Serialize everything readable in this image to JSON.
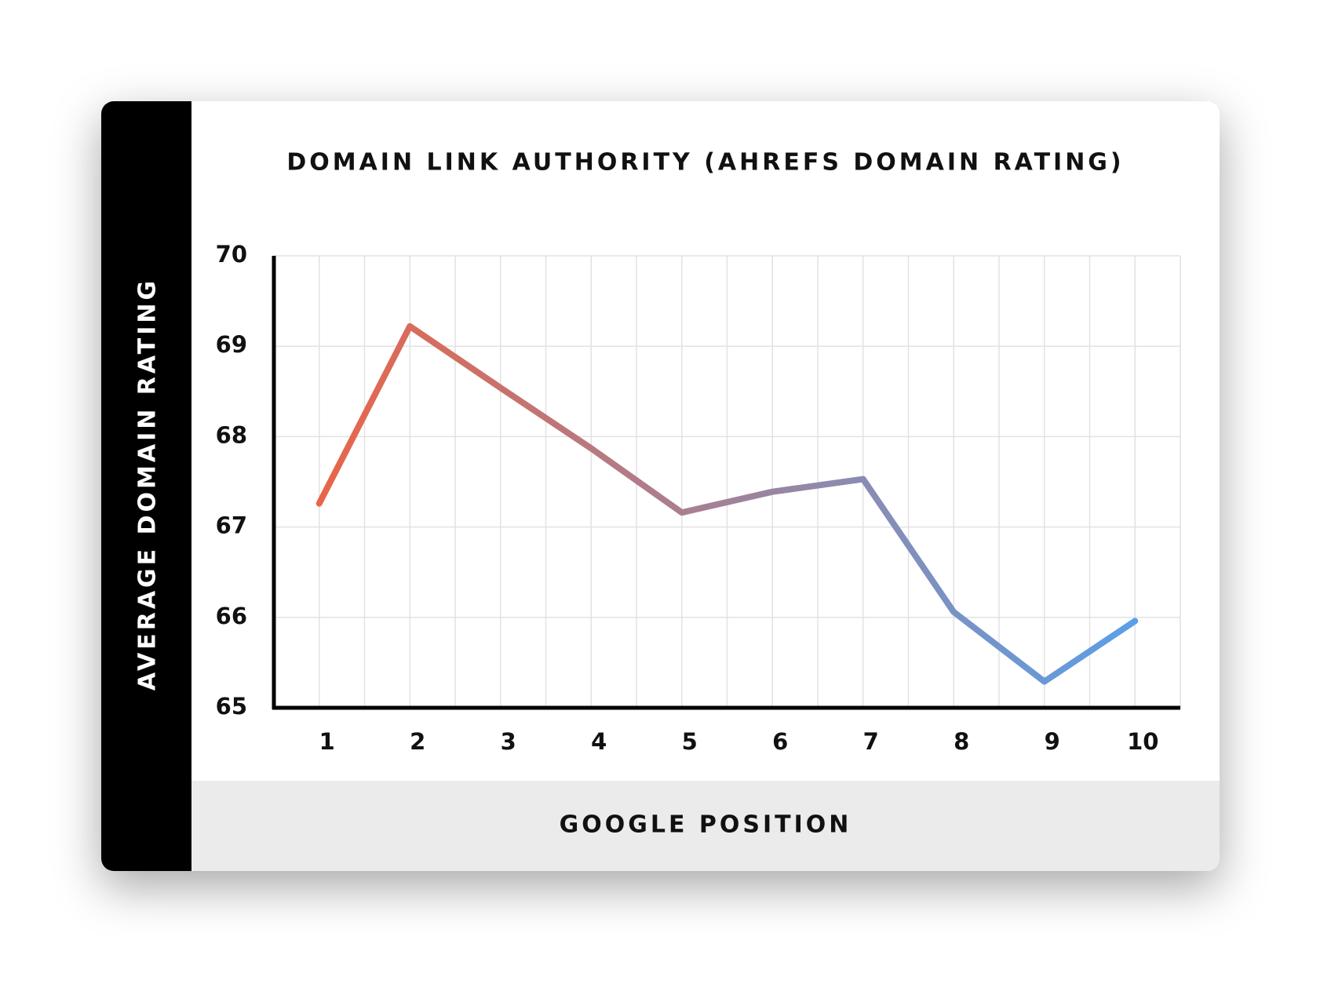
{
  "chart_data": {
    "type": "line",
    "title": "DOMAIN LINK AUTHORITY (AHREFS DOMAIN RATING)",
    "x_label": "GOOGLE POSITION",
    "y_label": "AVERAGE DOMAIN RATING",
    "x": [
      1,
      2,
      3,
      4,
      5,
      6,
      7,
      8,
      9,
      10
    ],
    "values": [
      67.26,
      69.22,
      68.54,
      67.87,
      67.16,
      67.39,
      67.53,
      66.06,
      65.29,
      65.96
    ],
    "gradient": [
      "#e8654a",
      "#5a9fe8"
    ],
    "xlim": [
      0.5,
      10.5
    ],
    "xticks": [
      1,
      2,
      3,
      4,
      5,
      6,
      7,
      8,
      9,
      10
    ],
    "x_minor_grid": [
      0.5,
      1.5,
      2.5,
      3.5,
      4.5,
      5.5,
      6.5,
      7.5,
      8.5,
      9.5,
      10.5
    ],
    "ylim": [
      65,
      70
    ],
    "yticks": [
      65,
      66,
      67,
      68,
      69,
      70
    ],
    "grid": true
  }
}
